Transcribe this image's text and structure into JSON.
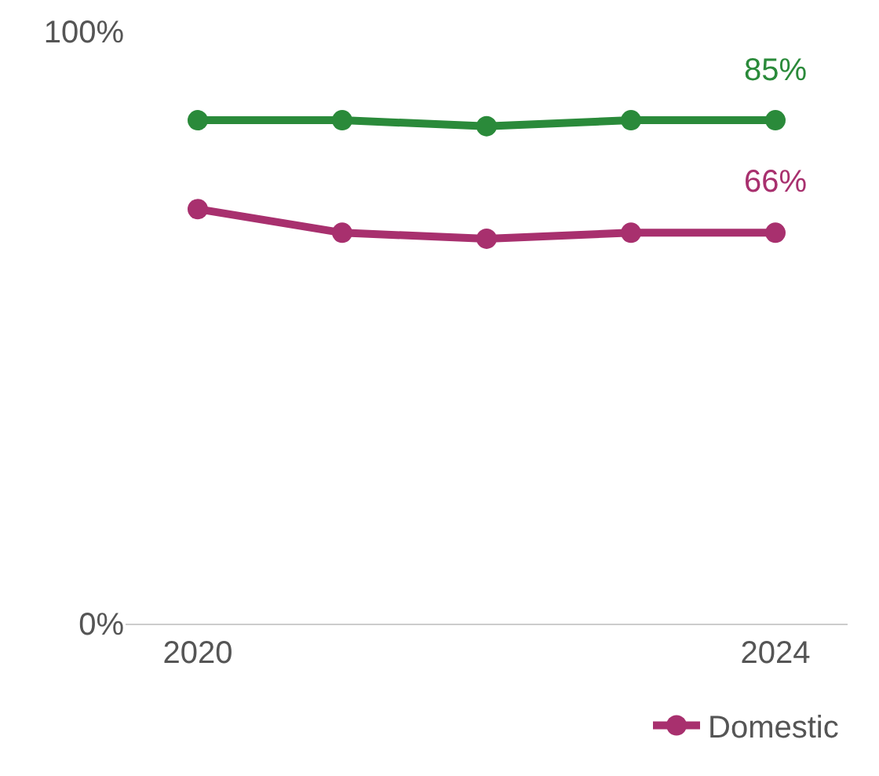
{
  "chart_data": {
    "type": "line",
    "x": [
      2020,
      2021,
      2022,
      2023,
      2024
    ],
    "xlim": [
      2019.5,
      2024.5
    ],
    "xticks": [
      2020,
      2024
    ],
    "ylim": [
      0,
      100
    ],
    "yticks": [
      {
        "value": 0,
        "label": "0%"
      },
      {
        "value": 100,
        "label": "100%"
      }
    ],
    "grid": false,
    "legend": "bottom right",
    "marker": "circle",
    "line_style": "solid",
    "series": [
      {
        "color": "#2a8a3a",
        "values": [
          85,
          85,
          84,
          85,
          85
        ],
        "value_labels": [
          null,
          null,
          null,
          null,
          "85%"
        ]
      },
      {
        "name": "Domestic",
        "color": "#a8306e",
        "values": [
          70,
          66,
          65,
          66,
          66
        ],
        "value_labels": [
          null,
          null,
          null,
          null,
          "66%"
        ]
      }
    ]
  }
}
